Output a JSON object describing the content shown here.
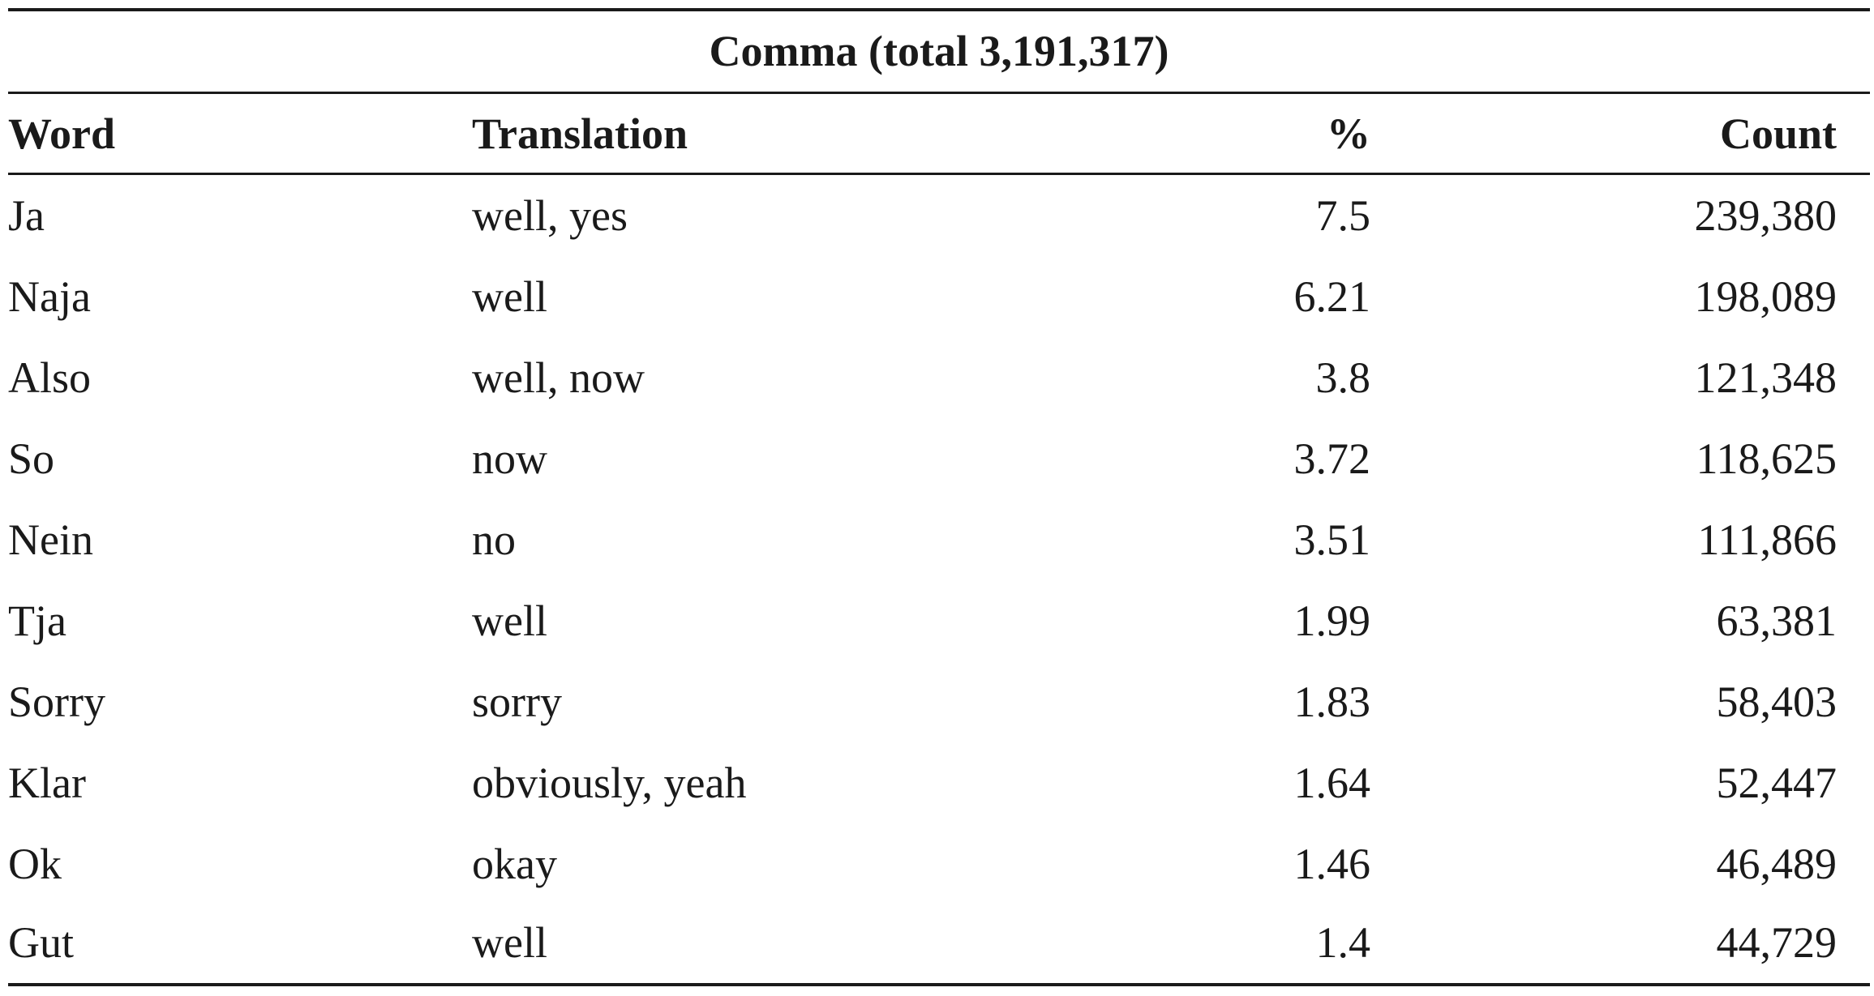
{
  "table": {
    "title": "Comma (total 3,191,317)",
    "headers": {
      "word": "Word",
      "translation": "Translation",
      "percent": "%",
      "count": "Count"
    },
    "rows": [
      {
        "word": "Ja",
        "translation": "well, yes",
        "percent": "7.5",
        "count": "239,380"
      },
      {
        "word": "Naja",
        "translation": "well",
        "percent": "6.21",
        "count": "198,089"
      },
      {
        "word": "Also",
        "translation": "well, now",
        "percent": "3.8",
        "count": "121,348"
      },
      {
        "word": "So",
        "translation": "now",
        "percent": "3.72",
        "count": "118,625"
      },
      {
        "word": "Nein",
        "translation": "no",
        "percent": "3.51",
        "count": "111,866"
      },
      {
        "word": "Tja",
        "translation": "well",
        "percent": "1.99",
        "count": "63,381"
      },
      {
        "word": "Sorry",
        "translation": "sorry",
        "percent": "1.83",
        "count": "58,403"
      },
      {
        "word": "Klar",
        "translation": "obviously, yeah",
        "percent": "1.64",
        "count": "52,447"
      },
      {
        "word": "Ok",
        "translation": "okay",
        "percent": "1.46",
        "count": "46,489"
      },
      {
        "word": "Gut",
        "translation": "well",
        "percent": "1.4",
        "count": "44,729"
      }
    ]
  }
}
